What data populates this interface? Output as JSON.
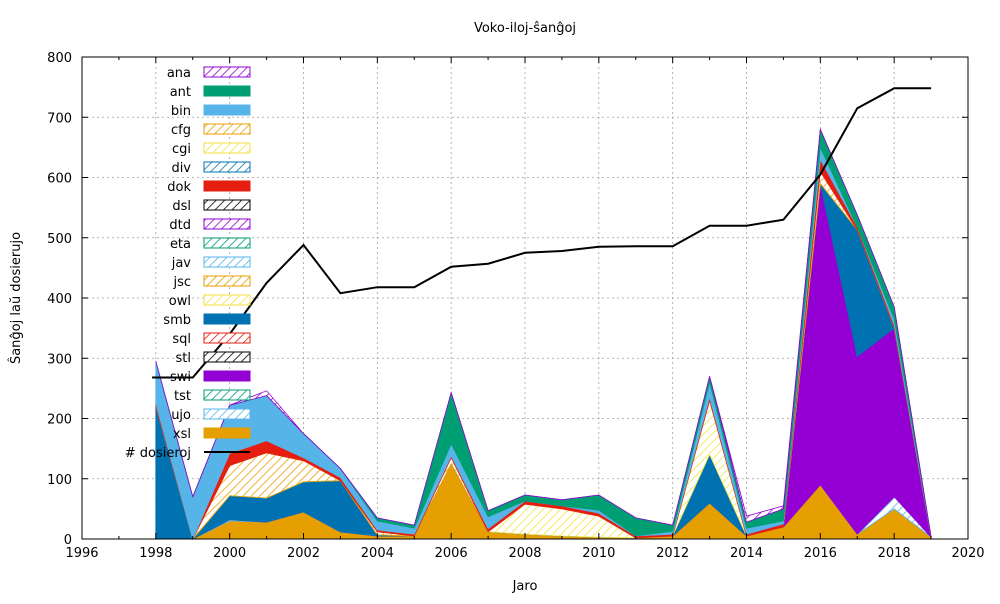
{
  "chart_data": {
    "type": "area",
    "stacked": true,
    "title": "Voko-iloj-ŝanĝoj",
    "xlabel": "Jaro",
    "ylabel": "Ŝanĝoj laŭ dosierujo",
    "xlim": [
      1996,
      2020
    ],
    "ylim": [
      0,
      800
    ],
    "xticks": [
      1996,
      1998,
      2000,
      2002,
      2004,
      2006,
      2008,
      2010,
      2012,
      2014,
      2016,
      2018,
      2020
    ],
    "yticks": [
      0,
      100,
      200,
      300,
      400,
      500,
      600,
      700,
      800
    ],
    "grid": true,
    "legend_position": "top-left",
    "x": [
      1998,
      1999,
      2000,
      2001,
      2002,
      2003,
      2004,
      2005,
      2006,
      2007,
      2008,
      2009,
      2010,
      2011,
      2012,
      2013,
      2014,
      2015,
      2016,
      2017,
      2018,
      2019
    ],
    "series": [
      {
        "name": "xsl",
        "color": "#e69f00",
        "pattern": "solid",
        "values": [
          0,
          0,
          30,
          28,
          45,
          12,
          5,
          5,
          125,
          12,
          8,
          5,
          3,
          2,
          5,
          60,
          5,
          20,
          90,
          8,
          50,
          3
        ]
      },
      {
        "name": "ujo",
        "color": "#56b4e9",
        "pattern": "hatch",
        "values": [
          0,
          0,
          2,
          0,
          0,
          0,
          0,
          0,
          0,
          0,
          0,
          0,
          0,
          0,
          0,
          0,
          0,
          0,
          0,
          0,
          20,
          0
        ]
      },
      {
        "name": "tst",
        "color": "#009e73",
        "pattern": "hatch",
        "values": [
          0,
          0,
          0,
          0,
          0,
          0,
          0,
          0,
          0,
          0,
          0,
          0,
          0,
          0,
          0,
          0,
          0,
          0,
          0,
          0,
          0,
          0
        ]
      },
      {
        "name": "swi",
        "color": "#9400d3",
        "pattern": "solid",
        "values": [
          0,
          0,
          0,
          0,
          0,
          0,
          0,
          0,
          0,
          0,
          0,
          0,
          0,
          0,
          0,
          0,
          0,
          0,
          500,
          295,
          280,
          0
        ]
      },
      {
        "name": "stl",
        "color": "#000000",
        "pattern": "hatch",
        "values": [
          0,
          0,
          0,
          0,
          0,
          0,
          0,
          0,
          0,
          0,
          0,
          0,
          0,
          0,
          0,
          0,
          0,
          0,
          0,
          0,
          0,
          0
        ]
      },
      {
        "name": "sql",
        "color": "#e51e10",
        "pattern": "hatch",
        "values": [
          0,
          0,
          0,
          0,
          0,
          0,
          0,
          0,
          0,
          0,
          0,
          0,
          0,
          0,
          0,
          0,
          0,
          0,
          0,
          0,
          0,
          0
        ]
      },
      {
        "name": "smb",
        "color": "#0072b2",
        "pattern": "solid",
        "values": [
          220,
          0,
          40,
          40,
          50,
          85,
          2,
          0,
          0,
          0,
          0,
          0,
          0,
          0,
          0,
          80,
          0,
          0,
          0,
          210,
          0,
          0
        ]
      },
      {
        "name": "owl",
        "color": "#f0e442",
        "pattern": "hatch",
        "values": [
          0,
          0,
          0,
          0,
          0,
          0,
          0,
          0,
          0,
          0,
          50,
          45,
          35,
          0,
          0,
          90,
          0,
          0,
          0,
          0,
          0,
          0
        ]
      },
      {
        "name": "jsc",
        "color": "#e69f00",
        "pattern": "hatch",
        "values": [
          0,
          0,
          50,
          75,
          35,
          0,
          5,
          0,
          10,
          0,
          0,
          0,
          0,
          0,
          0,
          0,
          0,
          0,
          20,
          0,
          0,
          0
        ]
      },
      {
        "name": "jav",
        "color": "#56b4e9",
        "pattern": "hatch",
        "values": [
          0,
          0,
          0,
          0,
          0,
          0,
          0,
          0,
          0,
          0,
          0,
          0,
          0,
          0,
          0,
          0,
          0,
          0,
          0,
          0,
          0,
          0
        ]
      },
      {
        "name": "eta",
        "color": "#009e73",
        "pattern": "hatch",
        "values": [
          0,
          0,
          0,
          0,
          0,
          0,
          0,
          0,
          0,
          0,
          0,
          0,
          0,
          0,
          0,
          0,
          0,
          0,
          0,
          0,
          0,
          0
        ]
      },
      {
        "name": "dtd",
        "color": "#9400d3",
        "pattern": "hatch",
        "values": [
          0,
          0,
          0,
          0,
          0,
          0,
          0,
          0,
          0,
          0,
          0,
          0,
          0,
          0,
          0,
          0,
          0,
          0,
          0,
          0,
          0,
          0
        ]
      },
      {
        "name": "dsl",
        "color": "#000000",
        "pattern": "hatch",
        "values": [
          0,
          0,
          0,
          0,
          0,
          0,
          0,
          0,
          0,
          0,
          0,
          0,
          0,
          0,
          0,
          0,
          0,
          0,
          0,
          0,
          0,
          0
        ]
      },
      {
        "name": "dok",
        "color": "#e51e10",
        "pattern": "solid",
        "values": [
          5,
          0,
          20,
          20,
          5,
          5,
          3,
          3,
          3,
          5,
          5,
          5,
          5,
          3,
          3,
          5,
          3,
          5,
          20,
          5,
          5,
          0
        ]
      },
      {
        "name": "div",
        "color": "#0072b2",
        "pattern": "hatch",
        "values": [
          0,
          0,
          0,
          0,
          0,
          0,
          0,
          0,
          0,
          0,
          0,
          0,
          0,
          0,
          0,
          0,
          0,
          0,
          0,
          0,
          0,
          0
        ]
      },
      {
        "name": "cgi",
        "color": "#f0e442",
        "pattern": "hatch",
        "values": [
          0,
          0,
          0,
          0,
          0,
          0,
          0,
          0,
          0,
          0,
          0,
          0,
          0,
          0,
          0,
          0,
          0,
          0,
          0,
          0,
          0,
          0
        ]
      },
      {
        "name": "cfg",
        "color": "#e69f00",
        "pattern": "hatch",
        "values": [
          0,
          0,
          0,
          0,
          0,
          0,
          0,
          0,
          0,
          0,
          0,
          0,
          0,
          0,
          0,
          0,
          0,
          0,
          0,
          0,
          0,
          0
        ]
      },
      {
        "name": "bin",
        "color": "#56b4e9",
        "pattern": "solid",
        "values": [
          70,
          70,
          80,
          75,
          40,
          15,
          15,
          10,
          20,
          20,
          0,
          0,
          5,
          0,
          5,
          25,
          10,
          5,
          20,
          0,
          10,
          0
        ]
      },
      {
        "name": "ant",
        "color": "#009e73",
        "pattern": "solid",
        "values": [
          0,
          0,
          0,
          0,
          0,
          0,
          5,
          5,
          85,
          10,
          10,
          10,
          25,
          30,
          10,
          10,
          10,
          20,
          30,
          20,
          20,
          0
        ]
      },
      {
        "name": "ana",
        "color": "#9400d3",
        "pattern": "hatch",
        "values": [
          0,
          0,
          0,
          8,
          0,
          0,
          0,
          0,
          0,
          0,
          0,
          0,
          0,
          0,
          0,
          0,
          10,
          5,
          0,
          0,
          0,
          0
        ]
      }
    ],
    "total_line": {
      "name": "# dosieroj",
      "color": "#000000",
      "x": [
        1997.9,
        1998,
        1999,
        2000,
        2001,
        2002,
        2003,
        2004,
        2005,
        2006,
        2007,
        2008,
        2009,
        2010,
        2011,
        2012,
        2013,
        2014,
        2015,
        2016,
        2017,
        2018,
        2019
      ],
      "values": [
        268,
        268,
        268,
        340,
        425,
        488,
        408,
        418,
        418,
        452,
        457,
        475,
        478,
        485,
        486,
        486,
        520,
        520,
        530,
        605,
        715,
        748,
        748
      ]
    },
    "legend_order": [
      "ana",
      "ant",
      "bin",
      "cfg",
      "cgi",
      "div",
      "dok",
      "dsl",
      "dtd",
      "eta",
      "jav",
      "jsc",
      "owl",
      "smb",
      "sql",
      "stl",
      "swi",
      "tst",
      "ujo",
      "xsl",
      "# dosieroj"
    ]
  }
}
